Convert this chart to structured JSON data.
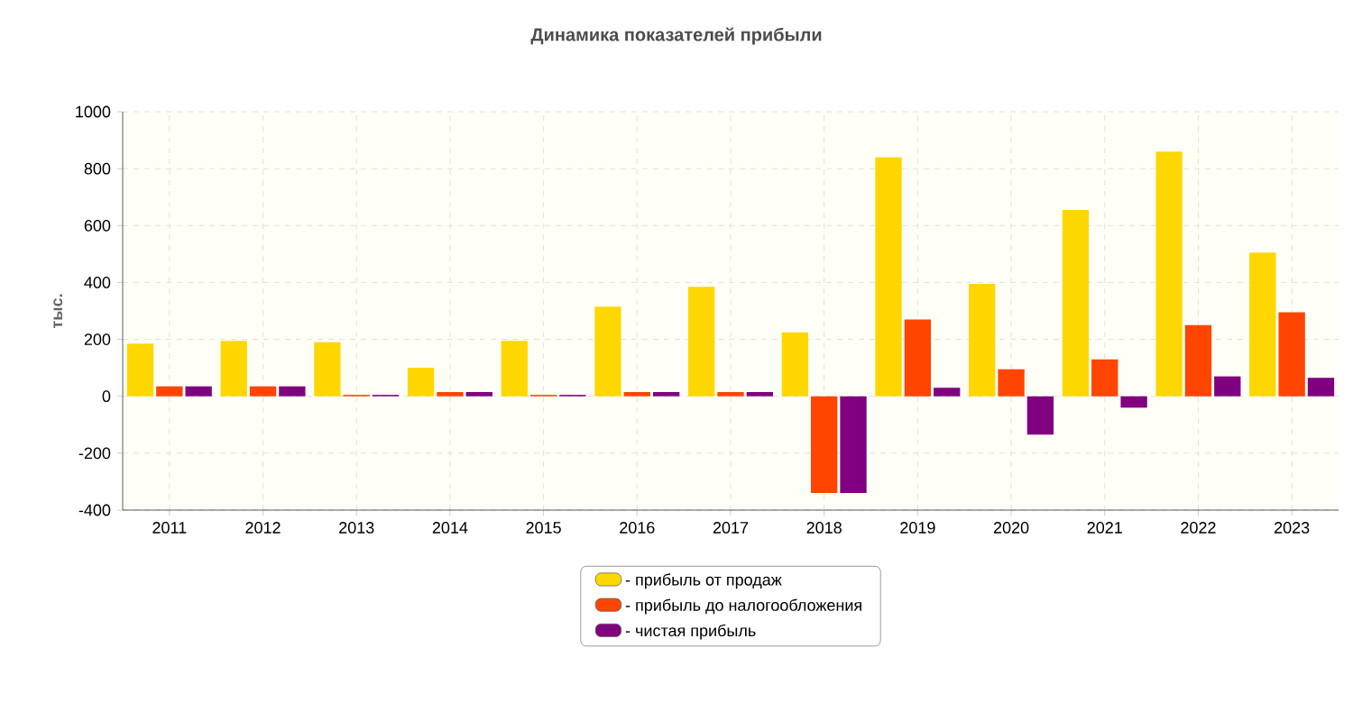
{
  "chart_data": {
    "type": "bar",
    "title": "Динамика показателей прибыли",
    "ylabel": "тыс.",
    "categories": [
      "2011",
      "2012",
      "2013",
      "2014",
      "2015",
      "2016",
      "2017",
      "2018",
      "2019",
      "2020",
      "2021",
      "2022",
      "2023"
    ],
    "series": [
      {
        "name": "- прибыль от продаж",
        "color": "#ffd700",
        "values": [
          185,
          195,
          190,
          100,
          195,
          315,
          385,
          225,
          840,
          395,
          655,
          860,
          505
        ]
      },
      {
        "name": "- прибыль до налогообложения",
        "color": "#ff4500",
        "values": [
          35,
          35,
          5,
          15,
          5,
          15,
          15,
          -340,
          270,
          95,
          130,
          250,
          295
        ]
      },
      {
        "name": "- чистая прибыль",
        "color": "#800080",
        "values": [
          35,
          35,
          5,
          15,
          5,
          15,
          15,
          -340,
          30,
          -135,
          -40,
          70,
          65
        ]
      }
    ],
    "ylim": [
      -400,
      1000
    ],
    "yticks": [
      -400,
      -200,
      0,
      200,
      400,
      600,
      800,
      1000
    ],
    "grid": true,
    "legend": "bottom"
  }
}
